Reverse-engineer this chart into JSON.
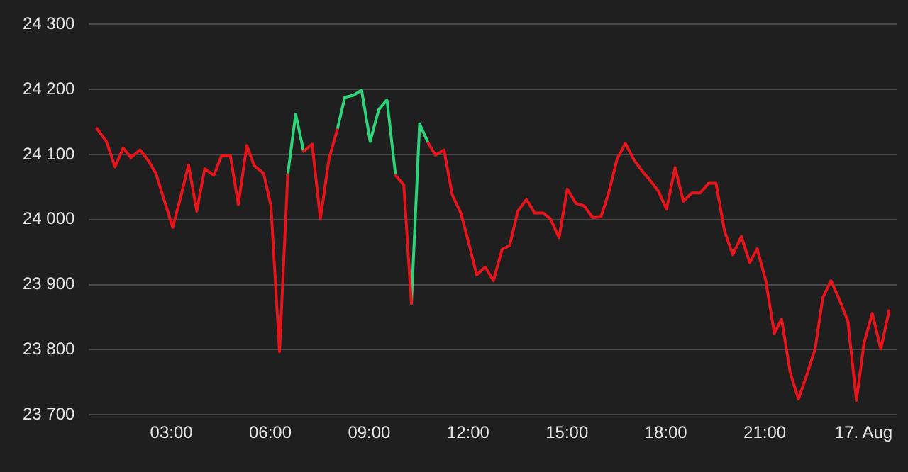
{
  "chart_data": {
    "type": "line",
    "x": [
      0.74,
      1.03,
      1.29,
      1.54,
      1.77,
      2.05,
      2.31,
      2.53,
      3.04,
      3.27,
      3.52,
      3.77,
      4.01,
      4.29,
      4.52,
      4.79,
      5.03,
      5.29,
      5.51,
      5.8,
      6.02,
      6.28,
      6.53,
      6.77,
      7.01,
      7.27,
      7.52,
      7.78,
      8.03,
      8.26,
      8.52,
      8.77,
      9.03,
      9.29,
      9.54,
      9.8,
      10.05,
      10.28,
      10.53,
      10.79,
      11.01,
      11.27,
      11.52,
      11.78,
      12.01,
      12.26,
      12.52,
      12.77,
      13.03,
      13.26,
      13.51,
      13.77,
      14.02,
      14.28,
      14.5,
      14.76,
      15.01,
      15.27,
      15.52,
      15.78,
      16.03,
      16.26,
      16.52,
      16.77,
      17.03,
      17.29,
      17.54,
      17.77,
      18.02,
      18.28,
      18.53,
      18.79,
      19.04,
      19.3,
      19.52,
      19.78,
      20.03,
      20.29,
      20.54,
      20.77,
      21.03,
      21.29,
      21.51,
      21.77,
      22.02,
      22.28,
      22.53,
      22.76,
      23.01,
      23.27,
      23.52,
      23.78,
      24.01,
      24.26,
      24.52,
      24.77
    ],
    "series": [
      {
        "color": "#e8141b",
        "values": [
          24140,
          24120,
          24081,
          24110,
          24095,
          24107,
          24090,
          24071,
          23988,
          24032,
          24084,
          24013,
          24078,
          24068,
          24098,
          24098,
          24023,
          24114,
          24083,
          24071,
          24021,
          23797,
          24069,
          null,
          24105,
          24116,
          24001,
          24093,
          24138,
          null,
          null,
          null,
          null,
          null,
          null,
          24068,
          24053,
          23871,
          null,
          24118,
          24099,
          24107,
          24038,
          24010,
          23966,
          23915,
          23927,
          23906,
          23954,
          23960,
          24013,
          24031,
          24010,
          24010,
          24001,
          23972,
          24047,
          24025,
          24021,
          24003,
          24004,
          24040,
          24093,
          24117,
          24092,
          24074,
          24059,
          24044,
          24016,
          24080,
          24028,
          24041,
          24041,
          24056,
          24056,
          23982,
          23946,
          23974,
          23934,
          23955,
          23906,
          23825,
          23847,
          23765,
          23724,
          23762,
          23802,
          23880,
          23906,
          23876,
          23844,
          23722,
          23810,
          23856,
          23801,
          23860
        ]
      },
      {
        "color": "#2ed47a",
        "x": [
          6.53,
          6.77,
          7.01,
          7.27,
          8.03,
          8.26,
          8.52,
          8.77,
          9.03,
          9.29,
          9.54,
          9.8,
          10.05,
          10.28,
          10.53,
          10.79
        ],
        "values": [
          24069,
          24162,
          24105,
          null,
          24138,
          24188,
          24191,
          24199,
          24120,
          24169,
          24184,
          24068,
          null,
          23871,
          24147,
          24118
        ]
      }
    ],
    "xlim": [
      0.5,
      25
    ],
    "xticks": [
      {
        "value": 3,
        "label": "03:00"
      },
      {
        "value": 6,
        "label": "06:00"
      },
      {
        "value": 9,
        "label": "09:00"
      },
      {
        "value": 12,
        "label": "12:00"
      },
      {
        "value": 15,
        "label": "15:00"
      },
      {
        "value": 18,
        "label": "18:00"
      },
      {
        "value": 21,
        "label": "21:00"
      },
      {
        "value": 24,
        "label": "17. Aug"
      }
    ],
    "ylim": [
      23700,
      24300
    ],
    "yticks": [
      {
        "value": 23700,
        "label": "23 700"
      },
      {
        "value": 23800,
        "label": "23 800"
      },
      {
        "value": 23900,
        "label": "23 900"
      },
      {
        "value": 24000,
        "label": "24 000"
      },
      {
        "value": 24100,
        "label": "24 100"
      },
      {
        "value": 24200,
        "label": "24 200"
      },
      {
        "value": 24300,
        "label": "24 300"
      }
    ],
    "grid": "y",
    "legend": false,
    "marker": "none",
    "line_style": "solid"
  }
}
